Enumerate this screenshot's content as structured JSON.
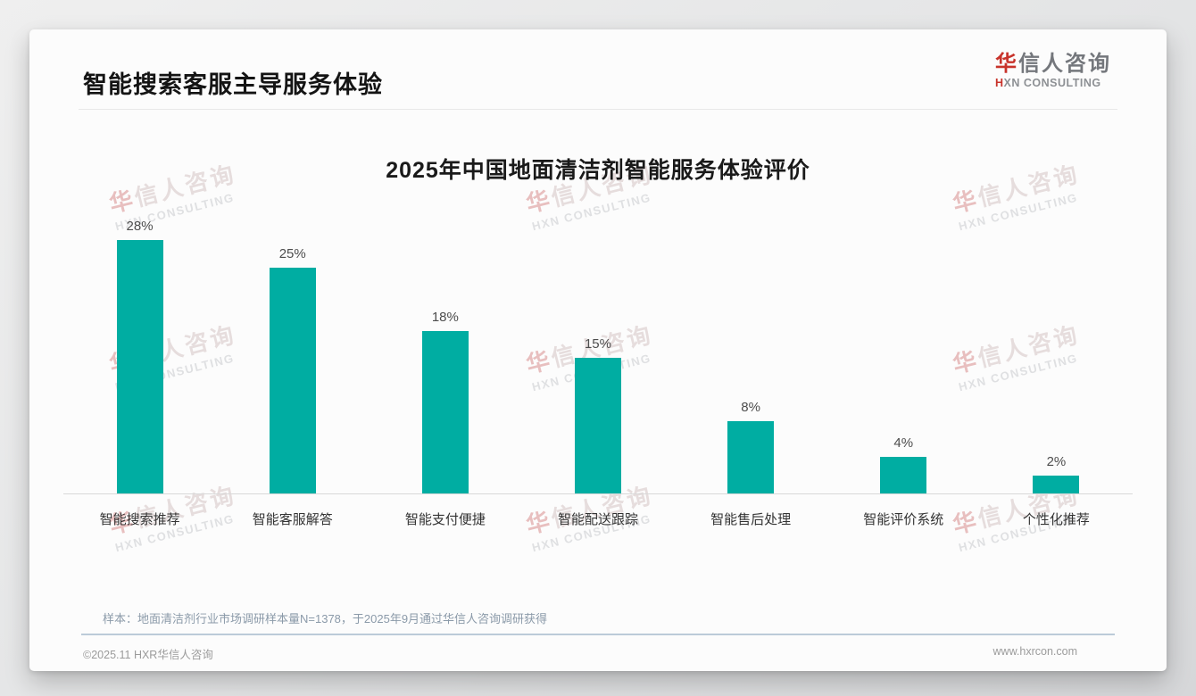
{
  "page": {
    "header": {
      "title": "智能搜索客服主导服务体验"
    },
    "logo": {
      "cn_first": "华",
      "cn_rest": "信人咨询",
      "en_first": "H",
      "en_rest": "XN CONSULTING"
    },
    "watermark": {
      "line1": "华信人咨询",
      "line2": "HXN CONSULTING"
    },
    "note": "样本：地面清洁剂行业市场调研样本量N=1378，于2025年9月通过华信人咨询调研获得",
    "footer": {
      "left": "©2025.11 HXR华信人咨询",
      "right": "www.hxrcon.com"
    }
  },
  "colors": {
    "bar_teal": "#00ADA2",
    "brand_red": "#c8332b",
    "note_gray_blue": "#8b9aa9"
  },
  "chart_data": {
    "type": "bar",
    "title": "2025年中国地面清洁剂智能服务体验评价",
    "categories": [
      "智能搜索推荐",
      "智能客服解答",
      "智能支付便捷",
      "智能配送跟踪",
      "智能售后处理",
      "智能评价系统",
      "个性化推荐"
    ],
    "values": [
      28,
      25,
      18,
      15,
      8,
      4,
      2
    ],
    "unit": "%",
    "bar_color": "#00ADA2",
    "xlabel": "",
    "ylabel": "",
    "ylim": [
      0,
      30
    ],
    "grid": false,
    "legend": false,
    "value_labels": true
  }
}
